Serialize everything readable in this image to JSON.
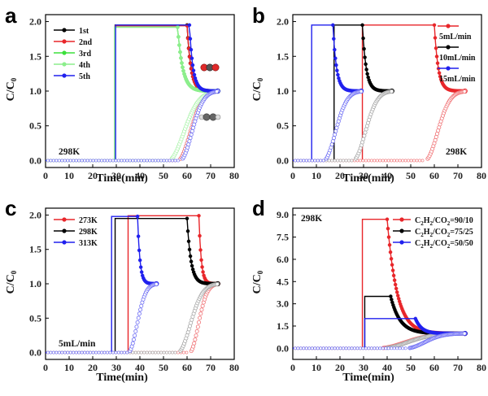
{
  "chart_data": [
    {
      "type": "line",
      "panel_label": "a",
      "xlabel": "Time(min)",
      "ylabel": "C/C0",
      "xlim": [
        0,
        80
      ],
      "ylim": [
        -0.1,
        2.1
      ],
      "xticks": [
        0,
        10,
        20,
        30,
        40,
        50,
        60,
        70,
        80
      ],
      "yticks": [
        "0.0",
        "0.5",
        "1.0",
        "1.5",
        "2.0"
      ],
      "annotations": [
        {
          "text": "298K",
          "pos": "bottom-left"
        }
      ],
      "legend_position": "top-right",
      "series": [
        {
          "name": "1st",
          "color": "#000000",
          "breakthrough": 29.5,
          "peak": 1.95,
          "drop": 60,
          "equil": 73
        },
        {
          "name": "2nd",
          "color": "#e8262a",
          "breakthrough": 29.5,
          "peak": 1.94,
          "drop": 60,
          "equil": 73
        },
        {
          "name": "3rd",
          "color": "#3be03b",
          "breakthrough": 29.3,
          "peak": 1.92,
          "drop": 56,
          "equil": 73
        },
        {
          "name": "4th",
          "color": "#8cee8c",
          "breakthrough": 29.3,
          "peak": 1.92,
          "drop": 56,
          "equil": 73
        },
        {
          "name": "5th",
          "color": "#2020ee",
          "breakthrough": 29.7,
          "peak": 1.95,
          "drop": 61,
          "equil": 73
        }
      ],
      "co2_tail_end": 73
    },
    {
      "type": "line",
      "panel_label": "b",
      "xlabel": "Time(min)",
      "ylabel": "C/C0",
      "xlim": [
        0,
        80
      ],
      "ylim": [
        -0.1,
        2.1
      ],
      "xticks": [
        0,
        10,
        20,
        30,
        40,
        50,
        60,
        70,
        80
      ],
      "yticks": [
        "0.0",
        "0.5",
        "1.0",
        "1.5",
        "2.0"
      ],
      "annotations": [
        {
          "text": "298K",
          "pos": "bottom-right"
        }
      ],
      "series": [
        {
          "name": "5mL/min",
          "color": "#e8262a",
          "breakthrough": 29.5,
          "peak": 1.95,
          "drop": 60,
          "equil": 73
        },
        {
          "name": "10mL/min",
          "color": "#000000",
          "breakthrough": 17.5,
          "peak": 1.95,
          "drop": 29.5,
          "equil": 42
        },
        {
          "name": "15mL/min",
          "color": "#2020ee",
          "breakthrough": 8,
          "peak": 1.95,
          "drop": 17,
          "equil": 29
        }
      ]
    },
    {
      "type": "line",
      "panel_label": "c",
      "xlabel": "Time(min)",
      "ylabel": "C/C0",
      "xlim": [
        0,
        80
      ],
      "ylim": [
        -0.1,
        2.1
      ],
      "xticks": [
        0,
        10,
        20,
        30,
        40,
        50,
        60,
        70,
        80
      ],
      "yticks": [
        "0.0",
        "0.5",
        "1.0",
        "1.5",
        "2.0"
      ],
      "annotations": [
        {
          "text": "5mL/min",
          "pos": "bottom-left"
        }
      ],
      "legend_position": "top-left",
      "series": [
        {
          "name": "273K",
          "color": "#e8262a",
          "breakthrough": 35,
          "peak": 1.99,
          "drop": 65,
          "equil": 73
        },
        {
          "name": "298K",
          "color": "#000000",
          "breakthrough": 29.5,
          "peak": 1.95,
          "drop": 60,
          "equil": 73
        },
        {
          "name": "313K",
          "color": "#2020ee",
          "breakthrough": 28,
          "peak": 1.98,
          "drop": 39,
          "equil": 47
        }
      ]
    },
    {
      "type": "line",
      "panel_label": "d",
      "xlabel": "Time(min)",
      "ylabel": "C/C0",
      "xlim": [
        0,
        80
      ],
      "ylim": [
        -0.75,
        9.45
      ],
      "xticks": [
        0,
        10,
        20,
        30,
        40,
        50,
        60,
        70,
        80
      ],
      "yticks": [
        "0.0",
        "1.5",
        "3.0",
        "4.5",
        "6.0",
        "7.5",
        "9.0"
      ],
      "annotations": [
        {
          "text": "298K",
          "pos": "top-left"
        }
      ],
      "legend_position": "top-right",
      "series": [
        {
          "name": "C2H2/CO2=90/10",
          "color": "#e8262a",
          "breakthrough": 29.5,
          "peak": 8.7,
          "drop": 40,
          "equil": 73
        },
        {
          "name": "C2H2/CO2=75/25",
          "color": "#000000",
          "breakthrough": 30.5,
          "peak": 3.5,
          "drop": 41.5,
          "equil": 73
        },
        {
          "name": "C2H2/CO2=50/50",
          "color": "#2020ee",
          "breakthrough": 30.5,
          "peak": 2.0,
          "drop": 52,
          "equil": 73
        }
      ]
    }
  ]
}
